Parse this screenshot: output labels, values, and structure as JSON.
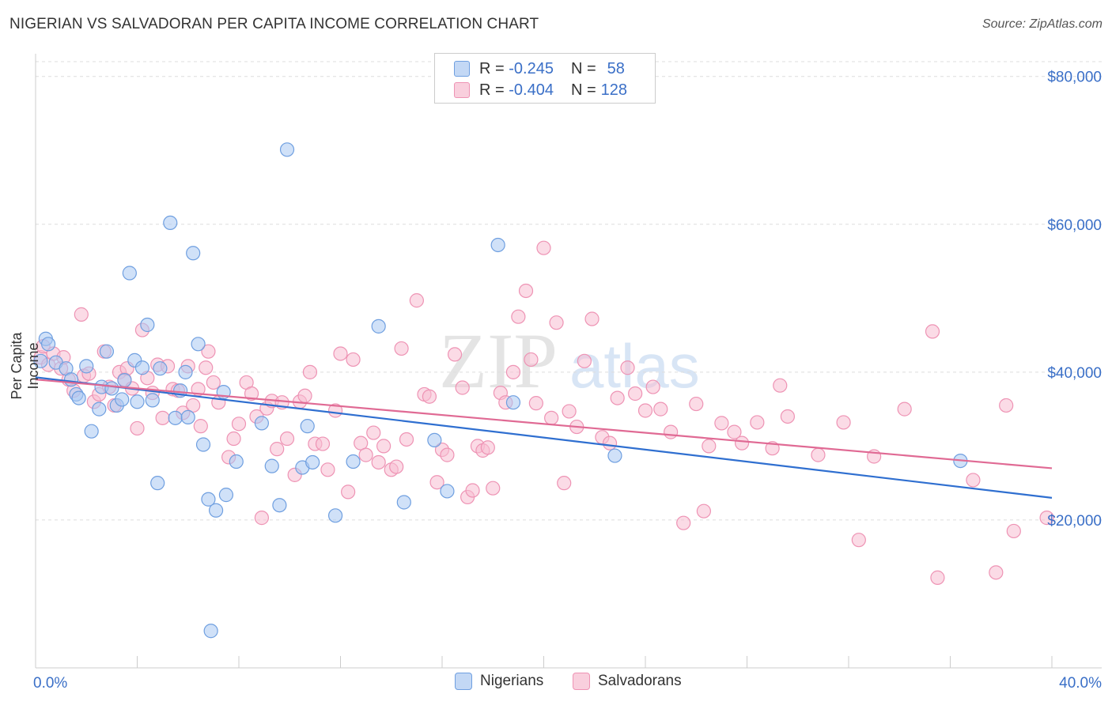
{
  "title": "NIGERIAN VS SALVADORAN PER CAPITA INCOME CORRELATION CHART",
  "source": "Source: ZipAtlas.com",
  "watermark": {
    "zip": "ZIP",
    "atlas": "atlas"
  },
  "legend_stats": [
    {
      "r_label": "R =",
      "r": "-0.245",
      "n_label": "N =",
      "n": "58"
    },
    {
      "r_label": "R =",
      "r": "-0.404",
      "n_label": "N =",
      "n": "128"
    }
  ],
  "colors": {
    "nigerian_fill": "#a9c8f2",
    "nigerian_stroke": "#6f9fe0",
    "nigerian_line": "#2f6fd0",
    "salvadoran_fill": "#f7bed1",
    "salvadoran_stroke": "#ee93b4",
    "salvadoran_line": "#e06a94",
    "tick_label": "#3a6fc7",
    "grid": "#dddddd"
  },
  "chart_data": {
    "type": "scatter",
    "xlabel": "",
    "ylabel": "Per Capita Income",
    "xlim": [
      0,
      40
    ],
    "ylim": [
      0,
      82000
    ],
    "x_tick_labels": [
      {
        "value": 0,
        "label": "0.0%"
      },
      {
        "value": 40,
        "label": "40.0%"
      }
    ],
    "y_ticks": [
      {
        "value": 20000,
        "label": "$20,000"
      },
      {
        "value": 40000,
        "label": "$40,000"
      },
      {
        "value": 60000,
        "label": "$60,000"
      },
      {
        "value": 80000,
        "label": "$80,000"
      }
    ],
    "grid": "horizontal dashed",
    "legend_position": "top-center",
    "series": [
      {
        "name": "Nigerians",
        "trend": {
          "x": [
            0,
            40
          ],
          "y": [
            39300,
            23000
          ]
        },
        "points": [
          [
            0.2,
            41500
          ],
          [
            0.4,
            44500
          ],
          [
            0.5,
            43800
          ],
          [
            0.8,
            41300
          ],
          [
            1.2,
            40500
          ],
          [
            1.4,
            39000
          ],
          [
            1.6,
            37000
          ],
          [
            1.7,
            36500
          ],
          [
            2.0,
            40800
          ],
          [
            2.2,
            32000
          ],
          [
            2.5,
            35000
          ],
          [
            2.6,
            38000
          ],
          [
            2.8,
            42800
          ],
          [
            3.0,
            37800
          ],
          [
            3.2,
            35500
          ],
          [
            3.4,
            36300
          ],
          [
            3.5,
            38900
          ],
          [
            3.7,
            53400
          ],
          [
            3.9,
            41600
          ],
          [
            4.0,
            36000
          ],
          [
            4.2,
            40600
          ],
          [
            4.4,
            46400
          ],
          [
            4.6,
            36200
          ],
          [
            4.8,
            25000
          ],
          [
            4.9,
            40500
          ],
          [
            5.3,
            60200
          ],
          [
            5.5,
            33800
          ],
          [
            5.7,
            37500
          ],
          [
            5.9,
            40000
          ],
          [
            6.0,
            33900
          ],
          [
            6.2,
            56100
          ],
          [
            6.4,
            43800
          ],
          [
            6.6,
            30200
          ],
          [
            6.8,
            22800
          ],
          [
            6.9,
            5000
          ],
          [
            7.1,
            21300
          ],
          [
            7.4,
            37300
          ],
          [
            7.5,
            23400
          ],
          [
            7.9,
            27900
          ],
          [
            8.9,
            33100
          ],
          [
            9.3,
            27300
          ],
          [
            9.6,
            22000
          ],
          [
            9.9,
            70100
          ],
          [
            10.5,
            27100
          ],
          [
            10.7,
            32700
          ],
          [
            10.9,
            27800
          ],
          [
            11.8,
            20600
          ],
          [
            12.5,
            27900
          ],
          [
            13.5,
            46200
          ],
          [
            14.5,
            22400
          ],
          [
            15.7,
            30800
          ],
          [
            16.2,
            23900
          ],
          [
            18.2,
            57200
          ],
          [
            18.8,
            35900
          ],
          [
            22.8,
            28700
          ],
          [
            36.4,
            28000
          ]
        ]
      },
      {
        "name": "Salvadorans",
        "trend": {
          "x": [
            0,
            40
          ],
          "y": [
            39000,
            27000
          ]
        },
        "points": [
          [
            0.2,
            42000
          ],
          [
            0.3,
            43500
          ],
          [
            0.5,
            41000
          ],
          [
            0.7,
            42500
          ],
          [
            1.0,
            40500
          ],
          [
            1.1,
            42000
          ],
          [
            1.3,
            39000
          ],
          [
            1.5,
            37500
          ],
          [
            1.8,
            47800
          ],
          [
            1.9,
            39500
          ],
          [
            2.1,
            39800
          ],
          [
            2.3,
            36000
          ],
          [
            2.5,
            37000
          ],
          [
            2.7,
            42800
          ],
          [
            2.9,
            38000
          ],
          [
            3.1,
            35500
          ],
          [
            3.3,
            40000
          ],
          [
            3.5,
            39000
          ],
          [
            3.6,
            40500
          ],
          [
            3.8,
            37800
          ],
          [
            4.0,
            32400
          ],
          [
            4.2,
            45700
          ],
          [
            4.4,
            39200
          ],
          [
            4.6,
            37200
          ],
          [
            4.8,
            41000
          ],
          [
            5.0,
            33800
          ],
          [
            5.2,
            40800
          ],
          [
            5.4,
            37700
          ],
          [
            5.6,
            37500
          ],
          [
            5.8,
            34500
          ],
          [
            6.0,
            40800
          ],
          [
            6.2,
            35500
          ],
          [
            6.4,
            37700
          ],
          [
            6.5,
            32700
          ],
          [
            6.7,
            40600
          ],
          [
            6.8,
            42800
          ],
          [
            7.0,
            38600
          ],
          [
            7.2,
            35900
          ],
          [
            7.6,
            28500
          ],
          [
            7.8,
            31000
          ],
          [
            8.0,
            33000
          ],
          [
            8.3,
            38600
          ],
          [
            8.5,
            37100
          ],
          [
            8.7,
            34000
          ],
          [
            8.9,
            20300
          ],
          [
            9.1,
            35100
          ],
          [
            9.3,
            36100
          ],
          [
            9.5,
            29600
          ],
          [
            9.7,
            35900
          ],
          [
            9.9,
            31000
          ],
          [
            10.2,
            26100
          ],
          [
            10.4,
            36000
          ],
          [
            10.6,
            36800
          ],
          [
            10.8,
            40000
          ],
          [
            11.0,
            30300
          ],
          [
            11.3,
            30300
          ],
          [
            11.5,
            26800
          ],
          [
            11.8,
            34800
          ],
          [
            12.0,
            42500
          ],
          [
            12.3,
            23800
          ],
          [
            12.5,
            41700
          ],
          [
            12.8,
            30400
          ],
          [
            13.0,
            28800
          ],
          [
            13.3,
            31800
          ],
          [
            13.5,
            27800
          ],
          [
            13.7,
            30000
          ],
          [
            14.0,
            26800
          ],
          [
            14.2,
            27200
          ],
          [
            14.4,
            43200
          ],
          [
            14.6,
            30900
          ],
          [
            15.0,
            49700
          ],
          [
            15.3,
            37000
          ],
          [
            15.5,
            36700
          ],
          [
            15.8,
            25100
          ],
          [
            16.0,
            29500
          ],
          [
            16.2,
            28800
          ],
          [
            16.5,
            42400
          ],
          [
            16.8,
            37900
          ],
          [
            17.0,
            23100
          ],
          [
            17.2,
            24000
          ],
          [
            17.4,
            30000
          ],
          [
            17.6,
            29400
          ],
          [
            17.8,
            29800
          ],
          [
            18.0,
            24300
          ],
          [
            18.3,
            37200
          ],
          [
            18.5,
            35900
          ],
          [
            18.8,
            40000
          ],
          [
            19.0,
            47500
          ],
          [
            19.3,
            51000
          ],
          [
            19.5,
            41700
          ],
          [
            19.7,
            35800
          ],
          [
            20.0,
            56800
          ],
          [
            20.3,
            33800
          ],
          [
            20.5,
            46700
          ],
          [
            20.8,
            25000
          ],
          [
            21.0,
            34700
          ],
          [
            21.3,
            32600
          ],
          [
            21.6,
            41500
          ],
          [
            21.9,
            47200
          ],
          [
            22.3,
            31200
          ],
          [
            22.6,
            30400
          ],
          [
            22.9,
            36500
          ],
          [
            23.3,
            40600
          ],
          [
            23.6,
            37100
          ],
          [
            24.0,
            34800
          ],
          [
            24.3,
            38000
          ],
          [
            24.6,
            35000
          ],
          [
            25.0,
            31900
          ],
          [
            25.5,
            19600
          ],
          [
            26.0,
            35700
          ],
          [
            26.3,
            21200
          ],
          [
            26.5,
            30000
          ],
          [
            27.0,
            33100
          ],
          [
            27.5,
            31900
          ],
          [
            27.8,
            30400
          ],
          [
            28.4,
            33200
          ],
          [
            29.0,
            29700
          ],
          [
            29.3,
            38200
          ],
          [
            29.6,
            34000
          ],
          [
            30.8,
            28800
          ],
          [
            31.8,
            33200
          ],
          [
            32.4,
            17300
          ],
          [
            33.0,
            28600
          ],
          [
            34.2,
            35000
          ],
          [
            35.3,
            45500
          ],
          [
            35.5,
            12200
          ],
          [
            36.9,
            25400
          ],
          [
            37.8,
            12900
          ],
          [
            38.2,
            35500
          ],
          [
            38.5,
            18500
          ],
          [
            39.8,
            20300
          ]
        ]
      }
    ]
  }
}
